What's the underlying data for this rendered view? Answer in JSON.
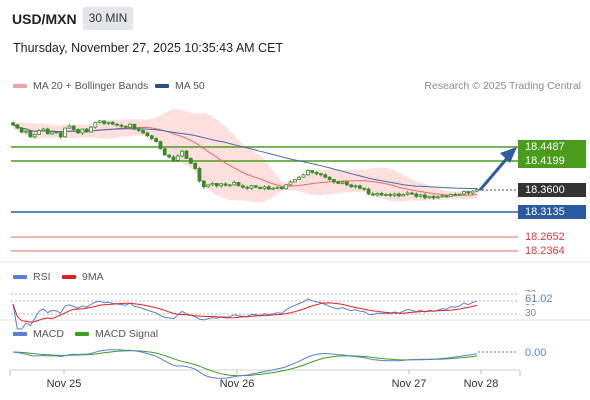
{
  "header": {
    "symbol": "USD/MXN",
    "timeframe": "30 MIN",
    "datetime": "Thursday, November 27, 2025 10:35:43 AM CET"
  },
  "legend": {
    "ma_bb": "MA 20 + Bollinger Bands",
    "ma50": "MA 50",
    "rsi": "RSI",
    "rsi_ma": "9MA",
    "macd": "MACD",
    "macd_signal": "MACD Signal",
    "copyright": "Research © 2025 Trading Central"
  },
  "colors": {
    "candle": "#3a8a2a",
    "bb_fill": "#fde0de",
    "ma20": "#e86a6a",
    "ma50": "#4a67a8",
    "resistance": "#4a9d1c",
    "support": "#2c5aa0",
    "lower": "#e55555",
    "arrow": "#2e5c9e",
    "current": "#333333"
  },
  "chart_data": [
    {
      "type": "candlestick",
      "ylim": [
        18.22,
        18.55
      ],
      "x_ticks": [
        "Nov 25",
        "Nov 26",
        "Nov 27",
        "Nov 28"
      ],
      "price_levels": {
        "resistance": [
          "18.4487",
          "18.4199"
        ],
        "current": "18.3600",
        "support": "18.3135",
        "lower": [
          "18.2652",
          "18.2364"
        ]
      },
      "close": [
        18.495,
        18.488,
        18.48,
        18.482,
        18.47,
        18.475,
        18.483,
        18.486,
        18.476,
        18.48,
        18.478,
        18.47,
        18.488,
        18.492,
        18.485,
        18.478,
        18.486,
        18.48,
        18.49,
        18.5,
        18.503,
        18.498,
        18.5,
        18.496,
        18.494,
        18.492,
        18.49,
        18.496,
        18.486,
        18.483,
        18.478,
        18.472,
        18.466,
        18.46,
        18.445,
        18.432,
        18.428,
        18.421,
        18.43,
        18.44,
        18.425,
        18.415,
        18.404,
        18.378,
        18.366,
        18.37,
        18.373,
        18.368,
        18.372,
        18.369,
        18.37,
        18.375,
        18.368,
        18.365,
        18.363,
        18.368,
        18.365,
        18.362,
        18.366,
        18.361,
        18.363,
        18.365,
        18.362,
        18.37,
        18.376,
        18.381,
        18.386,
        18.391,
        18.4,
        18.396,
        18.393,
        18.391,
        18.386,
        18.381,
        18.376,
        18.373,
        18.376,
        18.37,
        18.366,
        18.368,
        18.363,
        18.361,
        18.351,
        18.349,
        18.352,
        18.349,
        18.35,
        18.348,
        18.351,
        18.347,
        18.35,
        18.353,
        18.351,
        18.346,
        18.349,
        18.343,
        18.346,
        18.343,
        18.345,
        18.347,
        18.346,
        18.35,
        18.349,
        18.351,
        18.356,
        18.353,
        18.357,
        18.36
      ],
      "indicators": {
        "rsi_value": "61.02",
        "rsi_levels": [
          "70",
          "50",
          "30"
        ],
        "macd_value": "0.00"
      }
    }
  ]
}
